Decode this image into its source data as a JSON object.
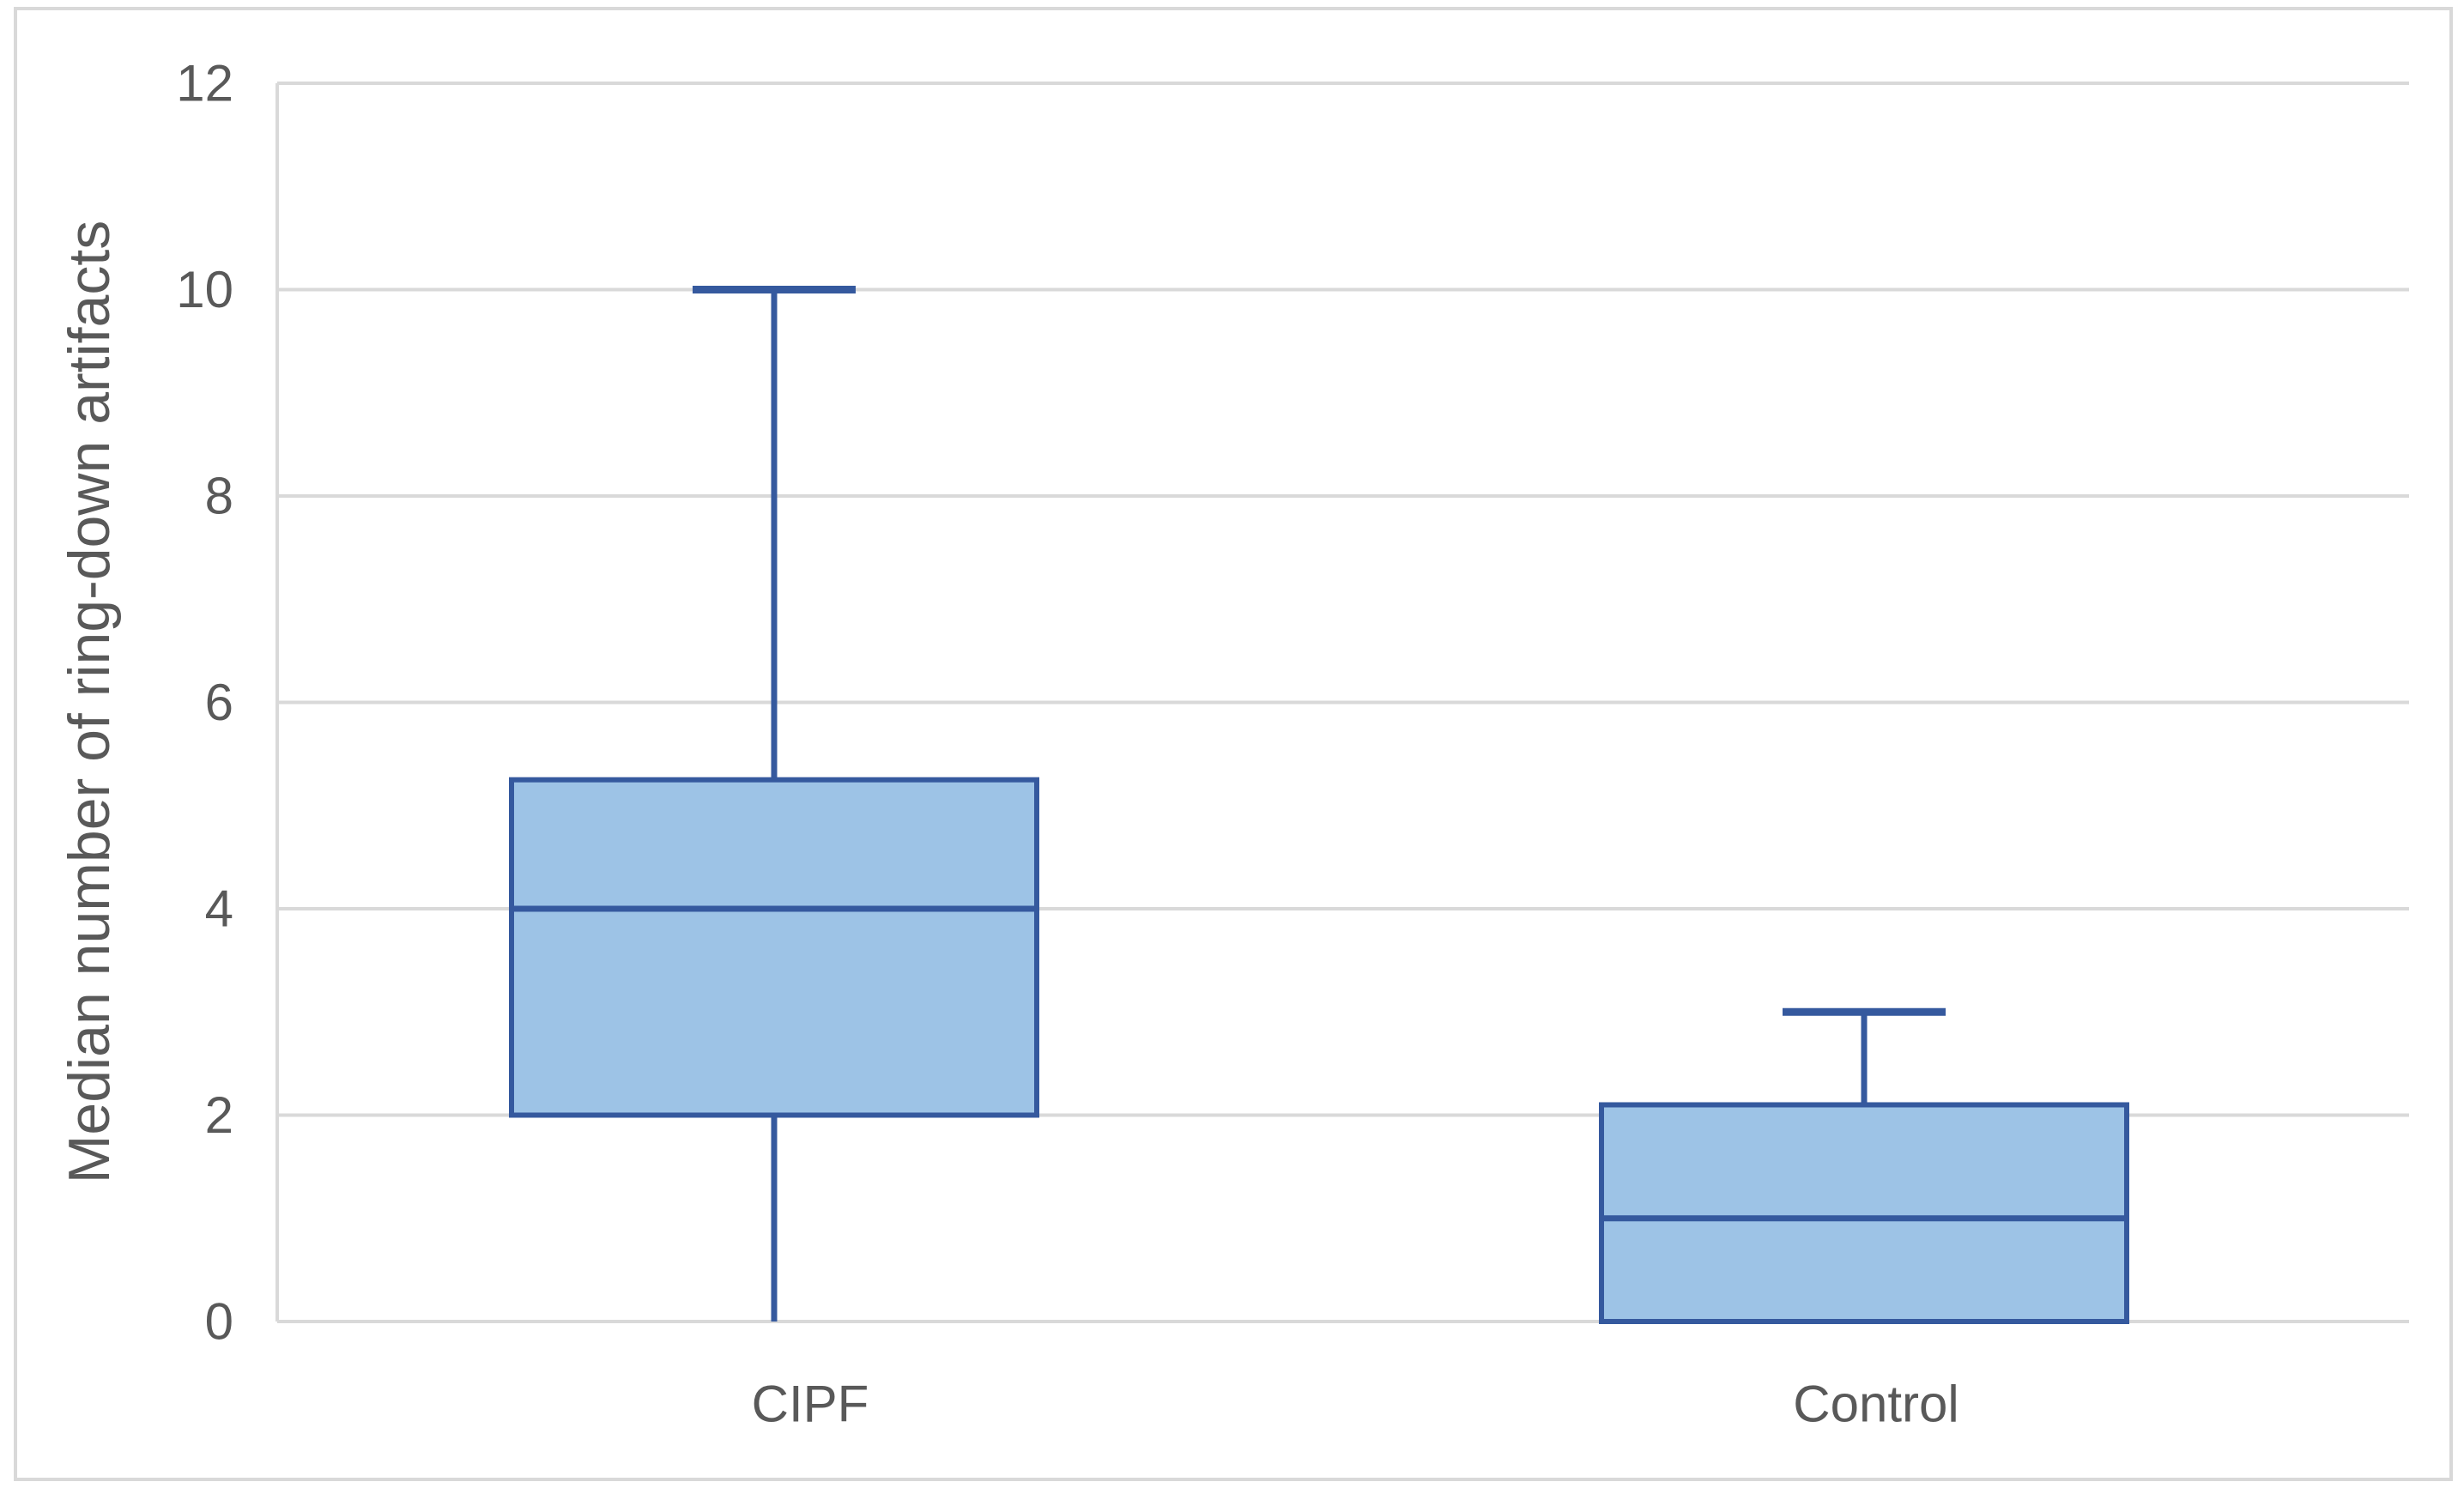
{
  "figure": {
    "background": "#FFFFFF",
    "border_color": "#D9D9D9"
  },
  "chart_data": {
    "type": "box",
    "title": "",
    "xlabel": "",
    "ylabel": "Median number of ring-down artifacts",
    "categories": [
      "CIPF",
      "Control"
    ],
    "y_ticks": [
      0,
      2,
      4,
      6,
      8,
      10,
      12
    ],
    "ylim": [
      0,
      12
    ],
    "grid": true,
    "legend": false,
    "series": [
      {
        "name": "CIPF",
        "min": 0,
        "q1": 2,
        "median": 4,
        "q3": 5.25,
        "max": 10,
        "upper_whisker_cap": true,
        "lower_whisker_cap": false
      },
      {
        "name": "Control",
        "min": 0,
        "q1": 0,
        "median": 1,
        "q3": 2.1,
        "max": 3,
        "upper_whisker_cap": true,
        "lower_whisker_cap": false
      }
    ],
    "colors": {
      "box_fill": "#9DC3E6",
      "box_border": "#35599E",
      "gridline": "#D9D9D9",
      "text": "#595959"
    }
  }
}
